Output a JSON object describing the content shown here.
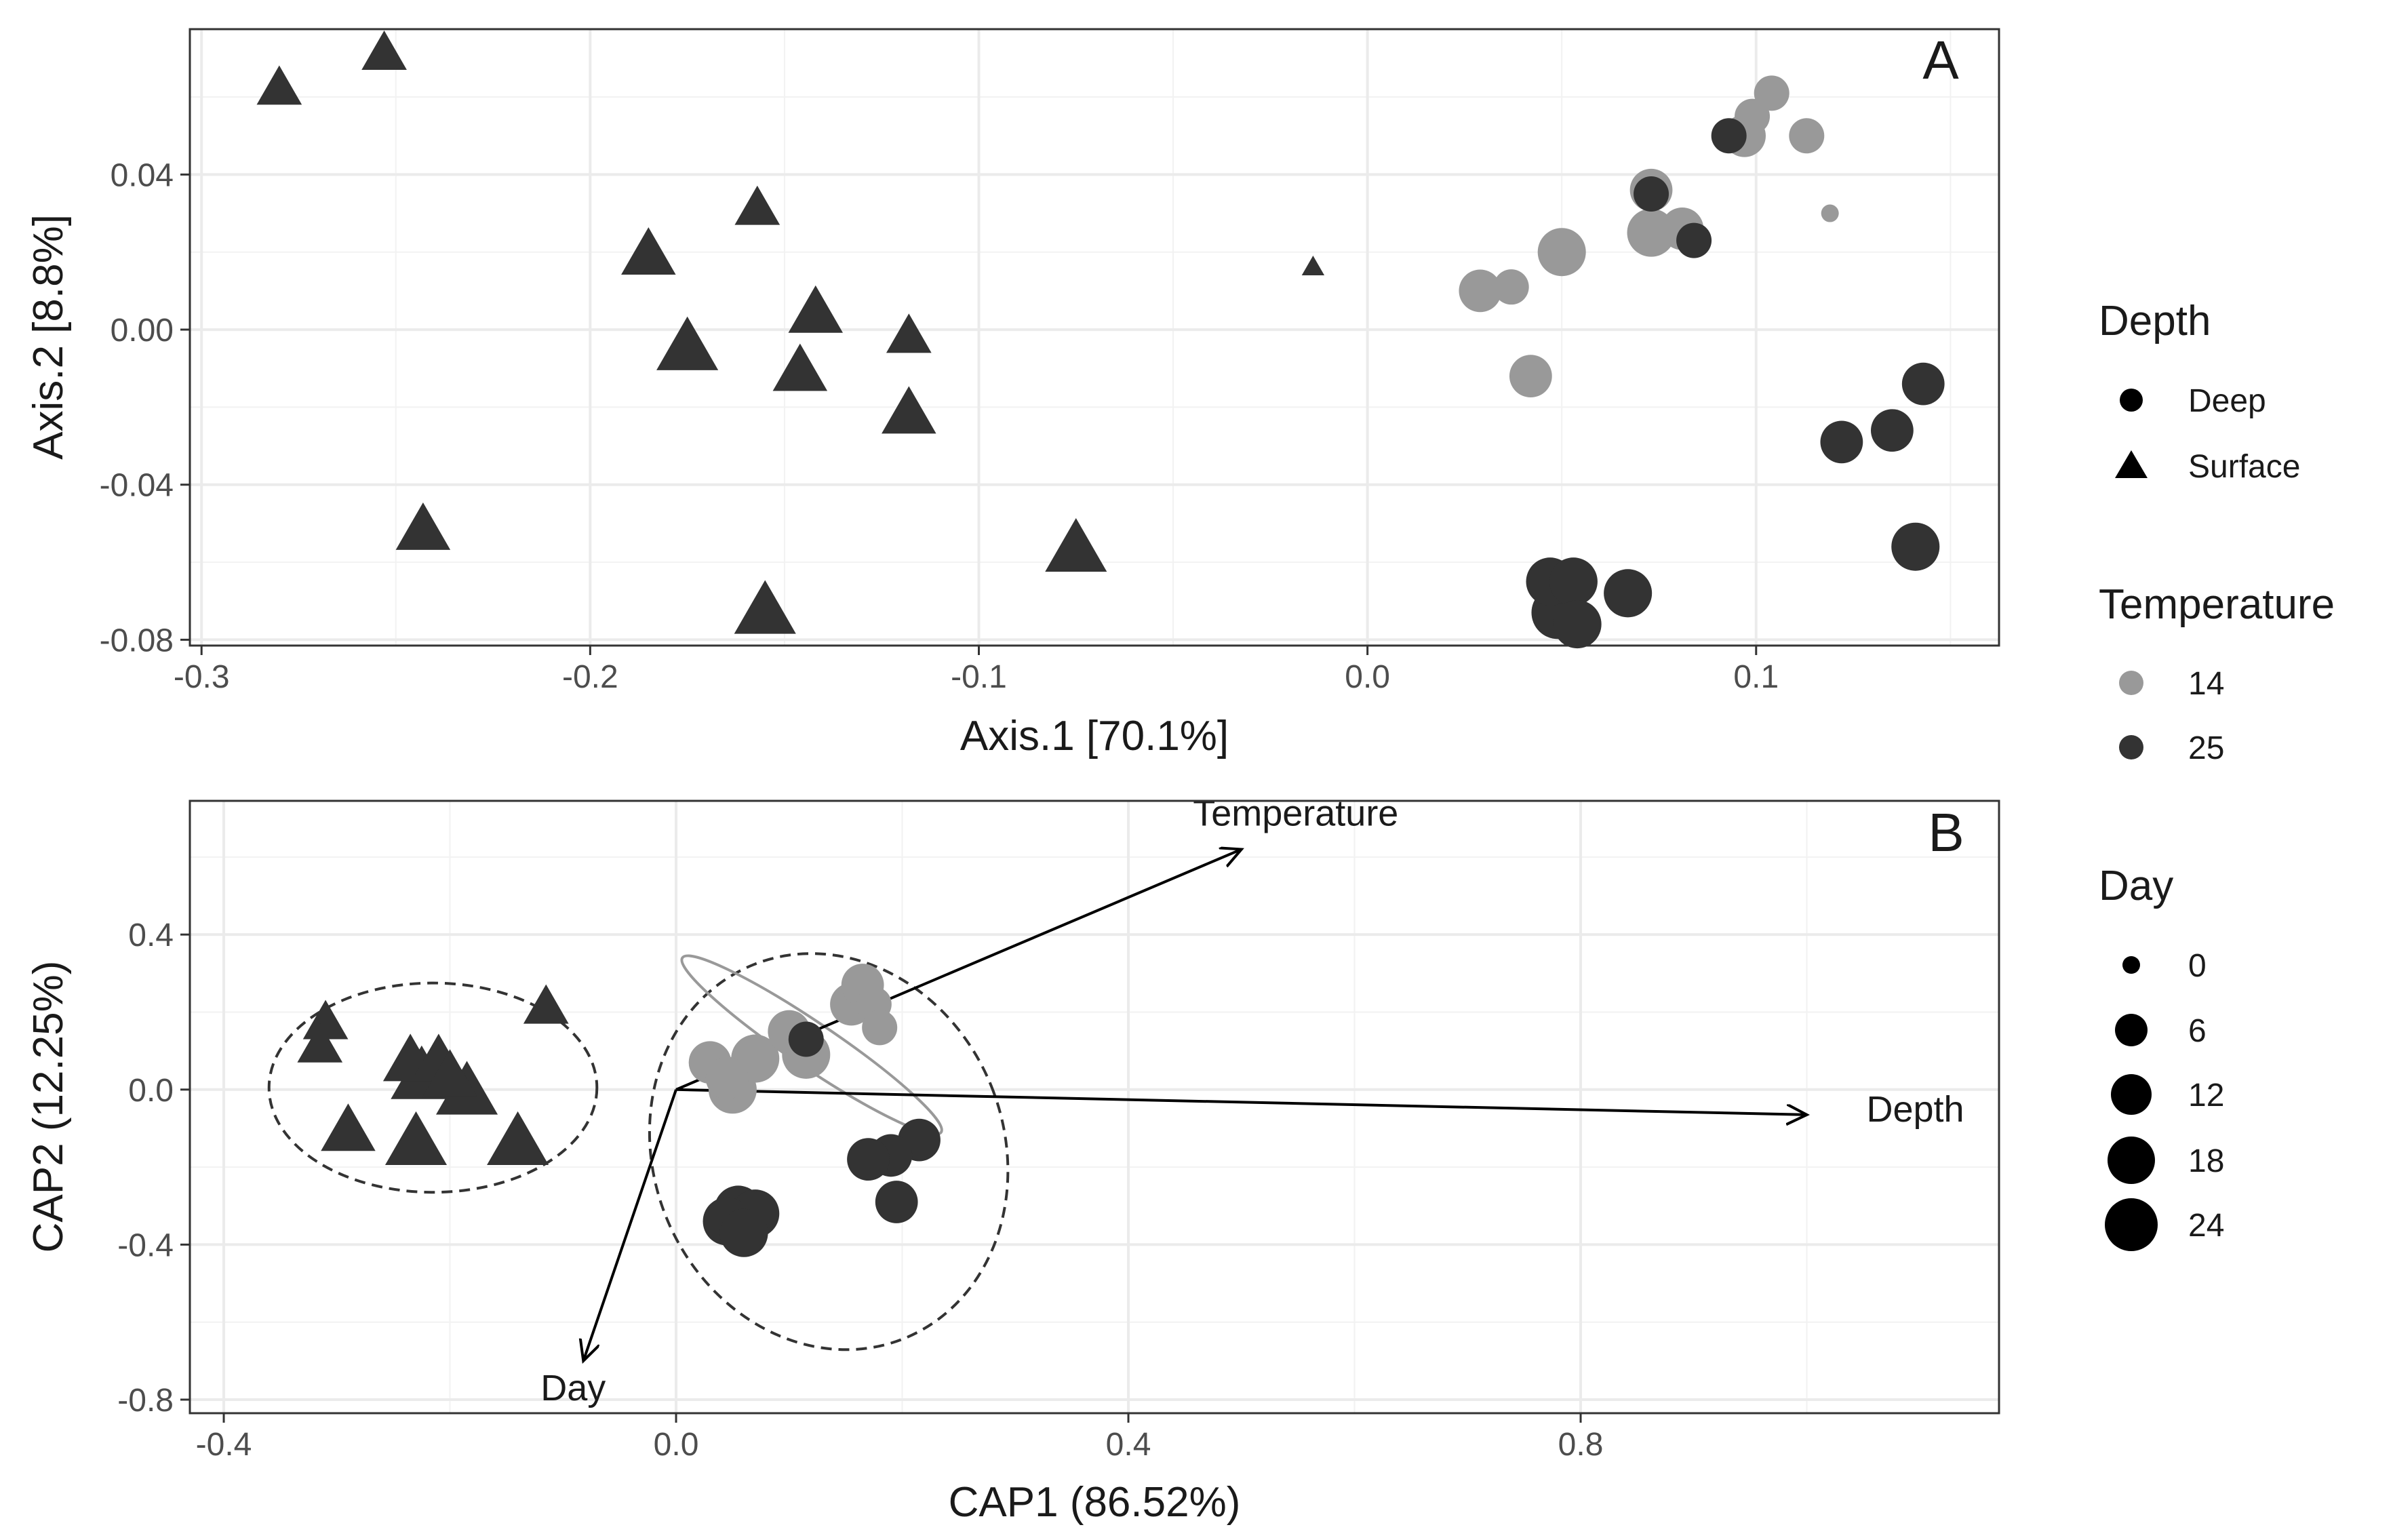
{
  "colors": {
    "14": "#999999",
    "25": "#333333",
    "surface": "#333333"
  },
  "panels": [
    {
      "id": "A",
      "letter": "A",
      "xlabel": "Axis.1   [70.1%]",
      "ylabel": "Axis.2   [8.8%]",
      "xlim": [
        -0.303,
        0.1625
      ],
      "ylim": [
        -0.0815,
        0.0775
      ],
      "xticks": [
        -0.3,
        -0.2,
        -0.1,
        0.0,
        0.1
      ],
      "xtick_labels": [
        "-0.3",
        "-0.2",
        "-0.1",
        "0.0",
        "0.1"
      ],
      "yticks": [
        0.04,
        0.0,
        -0.04,
        -0.08
      ],
      "ytick_labels": [
        "0.04",
        "0.00",
        "-0.04",
        "-0.08"
      ],
      "vectors": [],
      "ellipses": []
    },
    {
      "id": "B",
      "letter": "B",
      "xlabel": "CAP1 (86.52%)",
      "ylabel": "CAP2 (12.25%)",
      "xlim": [
        -0.43,
        1.17
      ],
      "ylim": [
        -0.835,
        0.745
      ],
      "xticks": [
        -0.4,
        0.0,
        0.4,
        0.8
      ],
      "xtick_labels": [
        "-0.4",
        "0.0",
        "0.4",
        "0.8"
      ],
      "yticks": [
        0.4,
        0.0,
        -0.4,
        -0.8
      ],
      "ytick_labels": [
        "0.4",
        "0.0",
        "-0.4",
        "-0.8"
      ],
      "vectors": [
        {
          "label": "Temperature",
          "x": 0.5,
          "y": 0.62
        },
        {
          "label": "Depth",
          "x": 1.0,
          "y": -0.065
        },
        {
          "label": "Day",
          "x": -0.082,
          "y": -0.7
        }
      ],
      "ellipses": [
        {
          "cx": -0.215,
          "cy": 0.005,
          "rx": 0.145,
          "ry": 0.27,
          "angle": 0,
          "style": "dashed",
          "color": "#333333"
        },
        {
          "cx": 0.135,
          "cy": -0.16,
          "rx": 0.155,
          "ry": 0.52,
          "angle": -22,
          "style": "dashed",
          "color": "#333333"
        },
        {
          "cx": 0.12,
          "cy": 0.115,
          "rx": 0.138,
          "ry": 0.058,
          "angle": 34,
          "style": "solid",
          "color": "#999999"
        }
      ]
    }
  ],
  "chart_data": [
    {
      "type": "scatter",
      "panel": "A",
      "xlabel": "Axis.1   [70.1%]",
      "ylabel": "Axis.2   [8.8%]",
      "xlim": [
        -0.303,
        0.1625
      ],
      "ylim": [
        -0.0815,
        0.0775
      ],
      "grid": true,
      "points": [
        {
          "x": -0.28,
          "y": 0.062,
          "depth": "Surface",
          "temperature": 25,
          "day": 6
        },
        {
          "x": -0.253,
          "y": 0.071,
          "depth": "Surface",
          "temperature": 25,
          "day": 6
        },
        {
          "x": -0.157,
          "y": 0.031,
          "depth": "Surface",
          "temperature": 25,
          "day": 6
        },
        {
          "x": -0.185,
          "y": 0.019,
          "depth": "Surface",
          "temperature": 25,
          "day": 12
        },
        {
          "x": -0.175,
          "y": -0.005,
          "depth": "Surface",
          "temperature": 25,
          "day": 18
        },
        {
          "x": -0.142,
          "y": 0.004,
          "depth": "Surface",
          "temperature": 25,
          "day": 12
        },
        {
          "x": -0.146,
          "y": -0.011,
          "depth": "Surface",
          "temperature": 25,
          "day": 12
        },
        {
          "x": -0.118,
          "y": -0.002,
          "depth": "Surface",
          "temperature": 25,
          "day": 6
        },
        {
          "x": -0.118,
          "y": -0.022,
          "depth": "Surface",
          "temperature": 25,
          "day": 12
        },
        {
          "x": -0.243,
          "y": -0.052,
          "depth": "Surface",
          "temperature": 25,
          "day": 12
        },
        {
          "x": -0.155,
          "y": -0.073,
          "depth": "Surface",
          "temperature": 25,
          "day": 18
        },
        {
          "x": -0.075,
          "y": -0.057,
          "depth": "Surface",
          "temperature": 25,
          "day": 18
        },
        {
          "x": -0.014,
          "y": 0.016,
          "depth": "Surface",
          "temperature": 25,
          "day": 0
        },
        {
          "x": 0.029,
          "y": 0.01,
          "depth": "Deep",
          "temperature": 14,
          "day": 12
        },
        {
          "x": 0.037,
          "y": 0.011,
          "depth": "Deep",
          "temperature": 14,
          "day": 6
        },
        {
          "x": 0.05,
          "y": 0.02,
          "depth": "Deep",
          "temperature": 14,
          "day": 18
        },
        {
          "x": 0.042,
          "y": -0.012,
          "depth": "Deep",
          "temperature": 14,
          "day": 12
        },
        {
          "x": 0.073,
          "y": 0.036,
          "depth": "Deep",
          "temperature": 14,
          "day": 12
        },
        {
          "x": 0.073,
          "y": 0.025,
          "depth": "Deep",
          "temperature": 14,
          "day": 18
        },
        {
          "x": 0.081,
          "y": 0.026,
          "depth": "Deep",
          "temperature": 14,
          "day": 12
        },
        {
          "x": 0.097,
          "y": 0.05,
          "depth": "Deep",
          "temperature": 14,
          "day": 12
        },
        {
          "x": 0.099,
          "y": 0.055,
          "depth": "Deep",
          "temperature": 14,
          "day": 6
        },
        {
          "x": 0.104,
          "y": 0.061,
          "depth": "Deep",
          "temperature": 14,
          "day": 6
        },
        {
          "x": 0.113,
          "y": 0.05,
          "depth": "Deep",
          "temperature": 14,
          "day": 6
        },
        {
          "x": 0.119,
          "y": 0.03,
          "depth": "Deep",
          "temperature": 14,
          "day": 0
        },
        {
          "x": 0.093,
          "y": 0.05,
          "depth": "Deep",
          "temperature": 25,
          "day": 6
        },
        {
          "x": 0.073,
          "y": 0.035,
          "depth": "Deep",
          "temperature": 25,
          "day": 6
        },
        {
          "x": 0.084,
          "y": 0.023,
          "depth": "Deep",
          "temperature": 25,
          "day": 6
        },
        {
          "x": 0.143,
          "y": -0.014,
          "depth": "Deep",
          "temperature": 25,
          "day": 12
        },
        {
          "x": 0.135,
          "y": -0.026,
          "depth": "Deep",
          "temperature": 25,
          "day": 12
        },
        {
          "x": 0.122,
          "y": -0.029,
          "depth": "Deep",
          "temperature": 25,
          "day": 12
        },
        {
          "x": 0.141,
          "y": -0.056,
          "depth": "Deep",
          "temperature": 25,
          "day": 18
        },
        {
          "x": 0.047,
          "y": -0.065,
          "depth": "Deep",
          "temperature": 25,
          "day": 18
        },
        {
          "x": 0.053,
          "y": -0.065,
          "depth": "Deep",
          "temperature": 25,
          "day": 18
        },
        {
          "x": 0.049,
          "y": -0.073,
          "depth": "Deep",
          "temperature": 25,
          "day": 24
        },
        {
          "x": 0.054,
          "y": -0.076,
          "depth": "Deep",
          "temperature": 25,
          "day": 18
        },
        {
          "x": 0.067,
          "y": -0.068,
          "depth": "Deep",
          "temperature": 25,
          "day": 18
        }
      ]
    },
    {
      "type": "scatter",
      "panel": "B",
      "xlabel": "CAP1 (86.52%)",
      "ylabel": "CAP2 (12.25%)",
      "xlim": [
        -0.43,
        1.17
      ],
      "ylim": [
        -0.835,
        0.745
      ],
      "grid": true,
      "vectors": [
        {
          "label": "Temperature",
          "x": 0.5,
          "y": 0.62
        },
        {
          "label": "Depth",
          "x": 1.0,
          "y": -0.065
        },
        {
          "label": "Day",
          "x": -0.082,
          "y": -0.7
        }
      ],
      "points": [
        {
          "x": -0.31,
          "y": 0.17,
          "depth": "Surface",
          "temperature": 25,
          "day": 6
        },
        {
          "x": -0.315,
          "y": 0.11,
          "depth": "Surface",
          "temperature": 25,
          "day": 6
        },
        {
          "x": -0.115,
          "y": 0.21,
          "depth": "Surface",
          "temperature": 25,
          "day": 6
        },
        {
          "x": -0.235,
          "y": 0.07,
          "depth": "Surface",
          "temperature": 25,
          "day": 12
        },
        {
          "x": -0.21,
          "y": 0.07,
          "depth": "Surface",
          "temperature": 25,
          "day": 12
        },
        {
          "x": -0.225,
          "y": 0.03,
          "depth": "Surface",
          "temperature": 25,
          "day": 18
        },
        {
          "x": -0.2,
          "y": 0.03,
          "depth": "Surface",
          "temperature": 25,
          "day": 12
        },
        {
          "x": -0.185,
          "y": -0.01,
          "depth": "Surface",
          "temperature": 25,
          "day": 18
        },
        {
          "x": -0.29,
          "y": -0.11,
          "depth": "Surface",
          "temperature": 25,
          "day": 12
        },
        {
          "x": -0.23,
          "y": -0.14,
          "depth": "Surface",
          "temperature": 25,
          "day": 18
        },
        {
          "x": -0.14,
          "y": -0.14,
          "depth": "Surface",
          "temperature": 25,
          "day": 18
        },
        {
          "x": 0.03,
          "y": 0.07,
          "depth": "Deep",
          "temperature": 14,
          "day": 12
        },
        {
          "x": 0.045,
          "y": 0.03,
          "depth": "Deep",
          "temperature": 14,
          "day": 12
        },
        {
          "x": 0.05,
          "y": 0.0,
          "depth": "Deep",
          "temperature": 14,
          "day": 18
        },
        {
          "x": 0.07,
          "y": 0.08,
          "depth": "Deep",
          "temperature": 14,
          "day": 18
        },
        {
          "x": 0.1,
          "y": 0.15,
          "depth": "Deep",
          "temperature": 14,
          "day": 12
        },
        {
          "x": 0.115,
          "y": 0.09,
          "depth": "Deep",
          "temperature": 14,
          "day": 18
        },
        {
          "x": 0.155,
          "y": 0.22,
          "depth": "Deep",
          "temperature": 14,
          "day": 12
        },
        {
          "x": 0.165,
          "y": 0.27,
          "depth": "Deep",
          "temperature": 14,
          "day": 12
        },
        {
          "x": 0.175,
          "y": 0.22,
          "depth": "Deep",
          "temperature": 14,
          "day": 6
        },
        {
          "x": 0.18,
          "y": 0.16,
          "depth": "Deep",
          "temperature": 14,
          "day": 6
        },
        {
          "x": 0.115,
          "y": 0.13,
          "depth": "Deep",
          "temperature": 25,
          "day": 6
        },
        {
          "x": 0.215,
          "y": -0.13,
          "depth": "Deep",
          "temperature": 25,
          "day": 12
        },
        {
          "x": 0.19,
          "y": -0.17,
          "depth": "Deep",
          "temperature": 25,
          "day": 12
        },
        {
          "x": 0.17,
          "y": -0.18,
          "depth": "Deep",
          "temperature": 25,
          "day": 12
        },
        {
          "x": 0.195,
          "y": -0.29,
          "depth": "Deep",
          "temperature": 25,
          "day": 12
        },
        {
          "x": 0.055,
          "y": -0.31,
          "depth": "Deep",
          "temperature": 25,
          "day": 18
        },
        {
          "x": 0.07,
          "y": -0.32,
          "depth": "Deep",
          "temperature": 25,
          "day": 18
        },
        {
          "x": 0.045,
          "y": -0.34,
          "depth": "Deep",
          "temperature": 25,
          "day": 18
        },
        {
          "x": 0.06,
          "y": -0.37,
          "depth": "Deep",
          "temperature": 25,
          "day": 18
        }
      ]
    }
  ],
  "legend": {
    "depth": {
      "title": "Depth",
      "items": [
        {
          "label": "Deep",
          "shape": "circle"
        },
        {
          "label": "Surface",
          "shape": "triangle"
        }
      ]
    },
    "temperature": {
      "title": "Temperature",
      "items": [
        {
          "label": "14",
          "color": "#999999"
        },
        {
          "label": "25",
          "color": "#333333"
        }
      ]
    },
    "day": {
      "title": "Day",
      "items": [
        {
          "label": "0",
          "value": 0
        },
        {
          "label": "6",
          "value": 6
        },
        {
          "label": "12",
          "value": 12
        },
        {
          "label": "18",
          "value": 18
        },
        {
          "label": "24",
          "value": 24
        }
      ]
    }
  }
}
